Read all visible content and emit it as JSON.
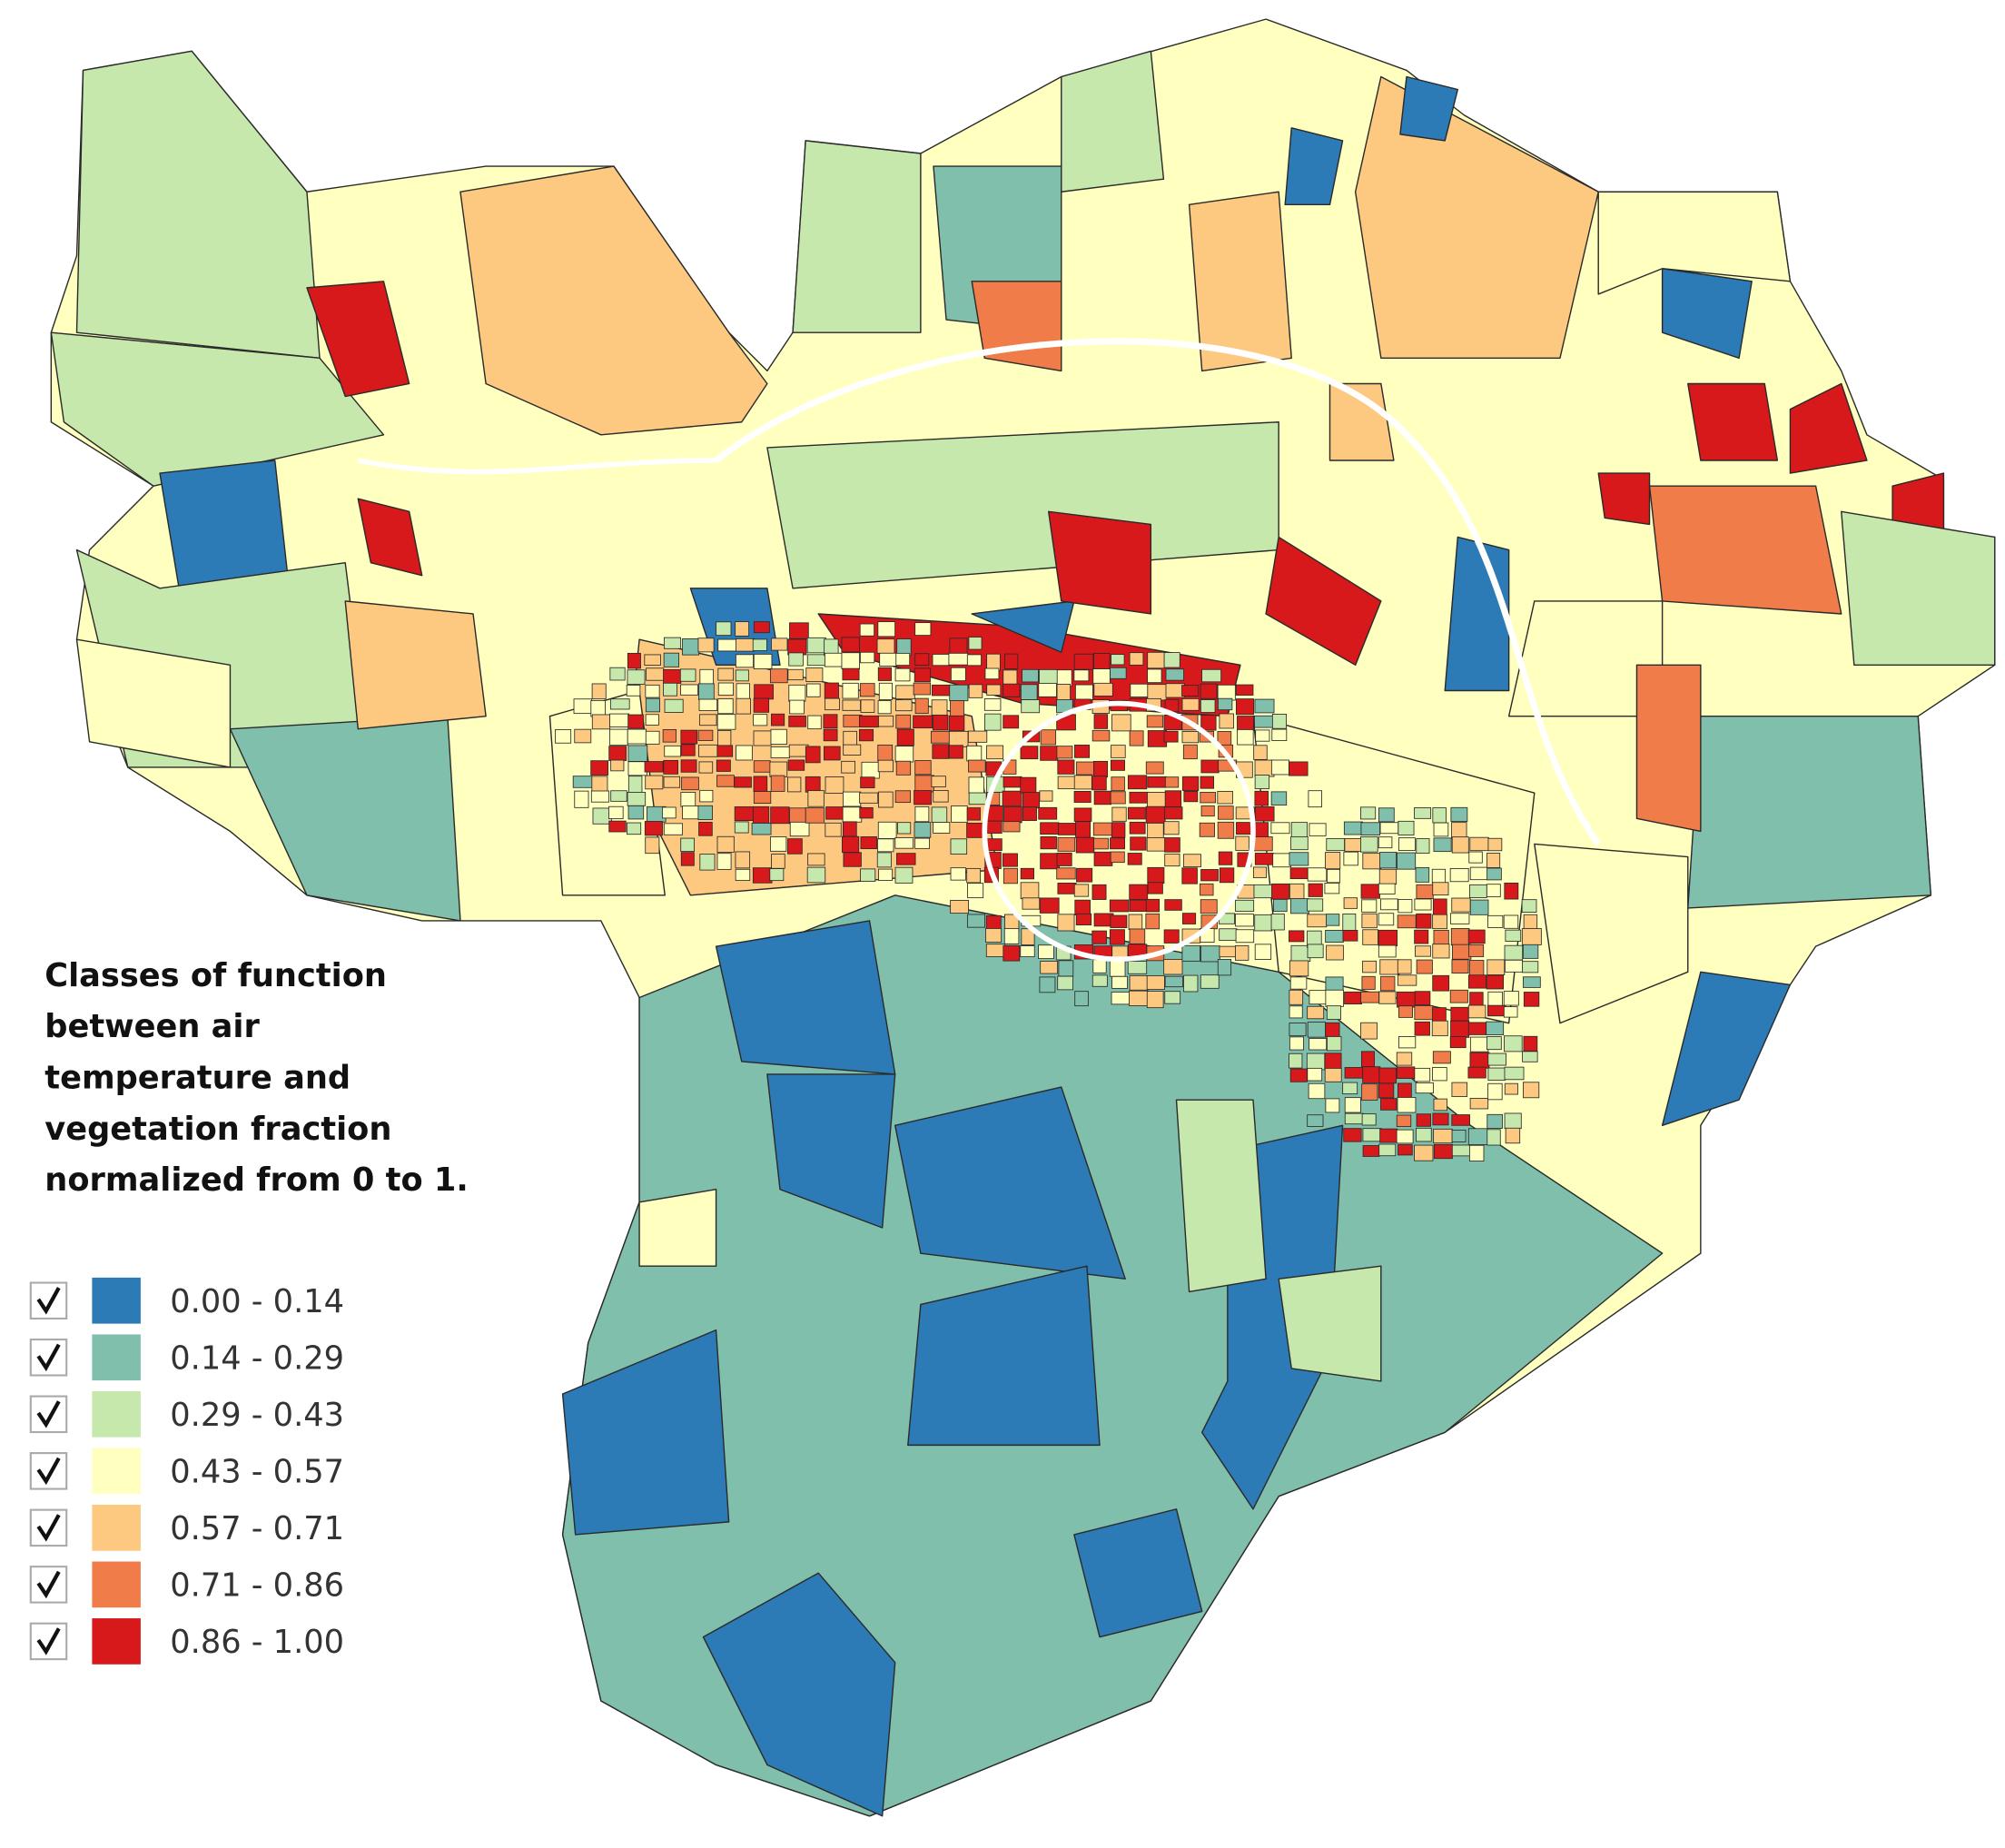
{
  "legend": {
    "title_lines": [
      "Classes of function",
      "between air",
      "temperature and",
      "vegetation fraction",
      "normalized from 0 to 1."
    ],
    "items": [
      {
        "label": "0.00 - 0.14",
        "color": "#2c7bb6",
        "checked": true
      },
      {
        "label": "0.14 - 0.29",
        "color": "#80bfab",
        "checked": true
      },
      {
        "label": "0.29 - 0.43",
        "color": "#c7e8ad",
        "checked": true
      },
      {
        "label": "0.43 - 0.57",
        "color": "#ffffbf",
        "checked": true
      },
      {
        "label": "0.57 - 0.71",
        "color": "#fdc980",
        "checked": true
      },
      {
        "label": "0.71 - 0.86",
        "color": "#f07c4a",
        "checked": true
      },
      {
        "label": "0.86 - 1.00",
        "color": "#d7191c",
        "checked": true
      }
    ]
  }
}
